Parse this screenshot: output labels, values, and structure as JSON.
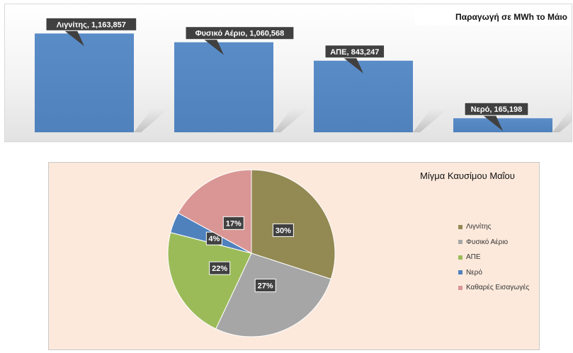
{
  "chart_data": [
    {
      "type": "bar",
      "title": "Παραγωγή σε MWh το Μάιο",
      "categories": [
        "Λιγνίτης",
        "Φυσικό Αέριο",
        "ΑΠΕ",
        "Νερό"
      ],
      "values": [
        1163857,
        1060568,
        843247,
        165198
      ],
      "data_labels": [
        "Λιγνίτης, 1,163,857",
        "Φυσικό Αέριο, 1,060,568",
        "ΑΠΕ, 843,247",
        "Νερό, 165,198"
      ],
      "ylim": [
        0,
        1300000
      ],
      "grid": false,
      "bar_color": "#4f81bd"
    },
    {
      "type": "pie",
      "title": "Μίγμα Καυσίμου Μαΐου",
      "categories": [
        "Λιγνίτης",
        "Φυσικό Αέριο",
        "ΑΠΕ",
        "Νερό",
        "Καθαρές Εισαγωγές"
      ],
      "values": [
        30,
        27,
        22,
        4,
        17
      ],
      "data_labels": [
        "30%",
        "27%",
        "22%",
        "4%",
        "17%"
      ],
      "colors": [
        "#938953",
        "#a6a6a6",
        "#9bbb59",
        "#4f81bd",
        "#d99694"
      ],
      "legend_position": "right"
    }
  ]
}
